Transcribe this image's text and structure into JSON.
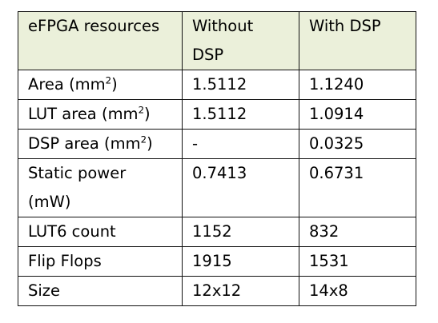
{
  "table": {
    "header": {
      "col1": "eFPGA resources",
      "col2_line1": "Without",
      "col2_line2": "DSP",
      "col3": "With DSP"
    },
    "rows": [
      {
        "label": "Area (mm",
        "sup": "2",
        "label_end": ")",
        "without": "1.5112",
        "with": "1.1240"
      },
      {
        "label": "LUT area (mm",
        "sup": "2",
        "label_end": ")",
        "without": "1.5112",
        "with": "1.0914"
      },
      {
        "label": "DSP area (mm",
        "sup": "2",
        "label_end": ")",
        "without": "-",
        "with": "0.0325"
      },
      {
        "label_line1": "Static power",
        "label_line2": "(mW)",
        "without": "0.7413",
        "with": "0.6731"
      },
      {
        "label": "LUT6 count",
        "without": "1152",
        "with": "832"
      },
      {
        "label": "Flip Flops",
        "without": "1915",
        "with": "1531"
      },
      {
        "label": "Size",
        "without": "12x12",
        "with": "14x8"
      }
    ]
  }
}
